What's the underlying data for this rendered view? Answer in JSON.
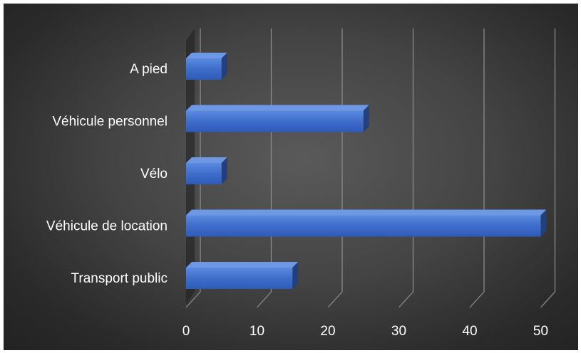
{
  "chart_data": {
    "type": "bar",
    "orientation": "horizontal",
    "categories": [
      "A pied",
      "Véhicule personnel",
      "Vélo",
      "Véhicule de location",
      "Transport public"
    ],
    "values": [
      5,
      25,
      5,
      50,
      15
    ],
    "xlim": [
      0,
      50
    ],
    "xticks": [
      "0",
      "10",
      "20",
      "30",
      "40",
      "50"
    ],
    "grid": true,
    "legend": "none",
    "bar_color": "#4472C4",
    "three_d": true
  }
}
